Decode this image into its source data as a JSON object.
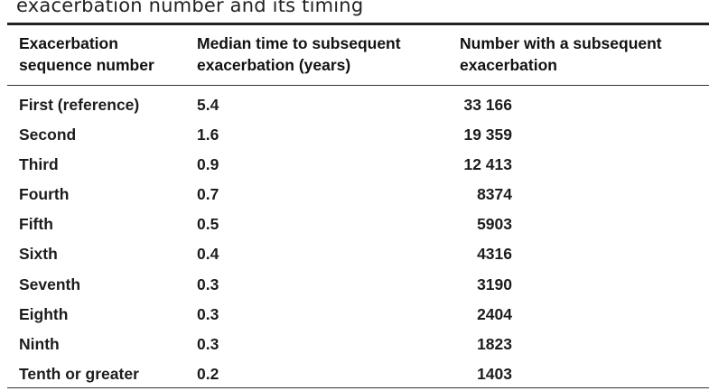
{
  "caption": "exacerbation number and its timing",
  "table": {
    "headers": {
      "col1_line1": "Exacerbation",
      "col1_line2": "sequence number",
      "col2_line1": "Median time to subsequent",
      "col2_line2": "exacerbation (years)",
      "col3_line1": "Number with a subsequent",
      "col3_line2": "exacerbation"
    },
    "rows": [
      {
        "sequence": "First (reference)",
        "median_years": "5.4",
        "number": "33 166"
      },
      {
        "sequence": "Second",
        "median_years": "1.6",
        "number": "19 359"
      },
      {
        "sequence": "Third",
        "median_years": "0.9",
        "number": "12 413"
      },
      {
        "sequence": "Fourth",
        "median_years": "0.7",
        "number": "8374"
      },
      {
        "sequence": "Fifth",
        "median_years": "0.5",
        "number": "5903"
      },
      {
        "sequence": "Sixth",
        "median_years": "0.4",
        "number": "4316"
      },
      {
        "sequence": "Seventh",
        "median_years": "0.3",
        "number": "3190"
      },
      {
        "sequence": "Eighth",
        "median_years": "0.3",
        "number": "2404"
      },
      {
        "sequence": "Ninth",
        "median_years": "0.3",
        "number": "1823"
      },
      {
        "sequence": "Tenth or greater",
        "median_years": "0.2",
        "number": "1403"
      }
    ]
  }
}
